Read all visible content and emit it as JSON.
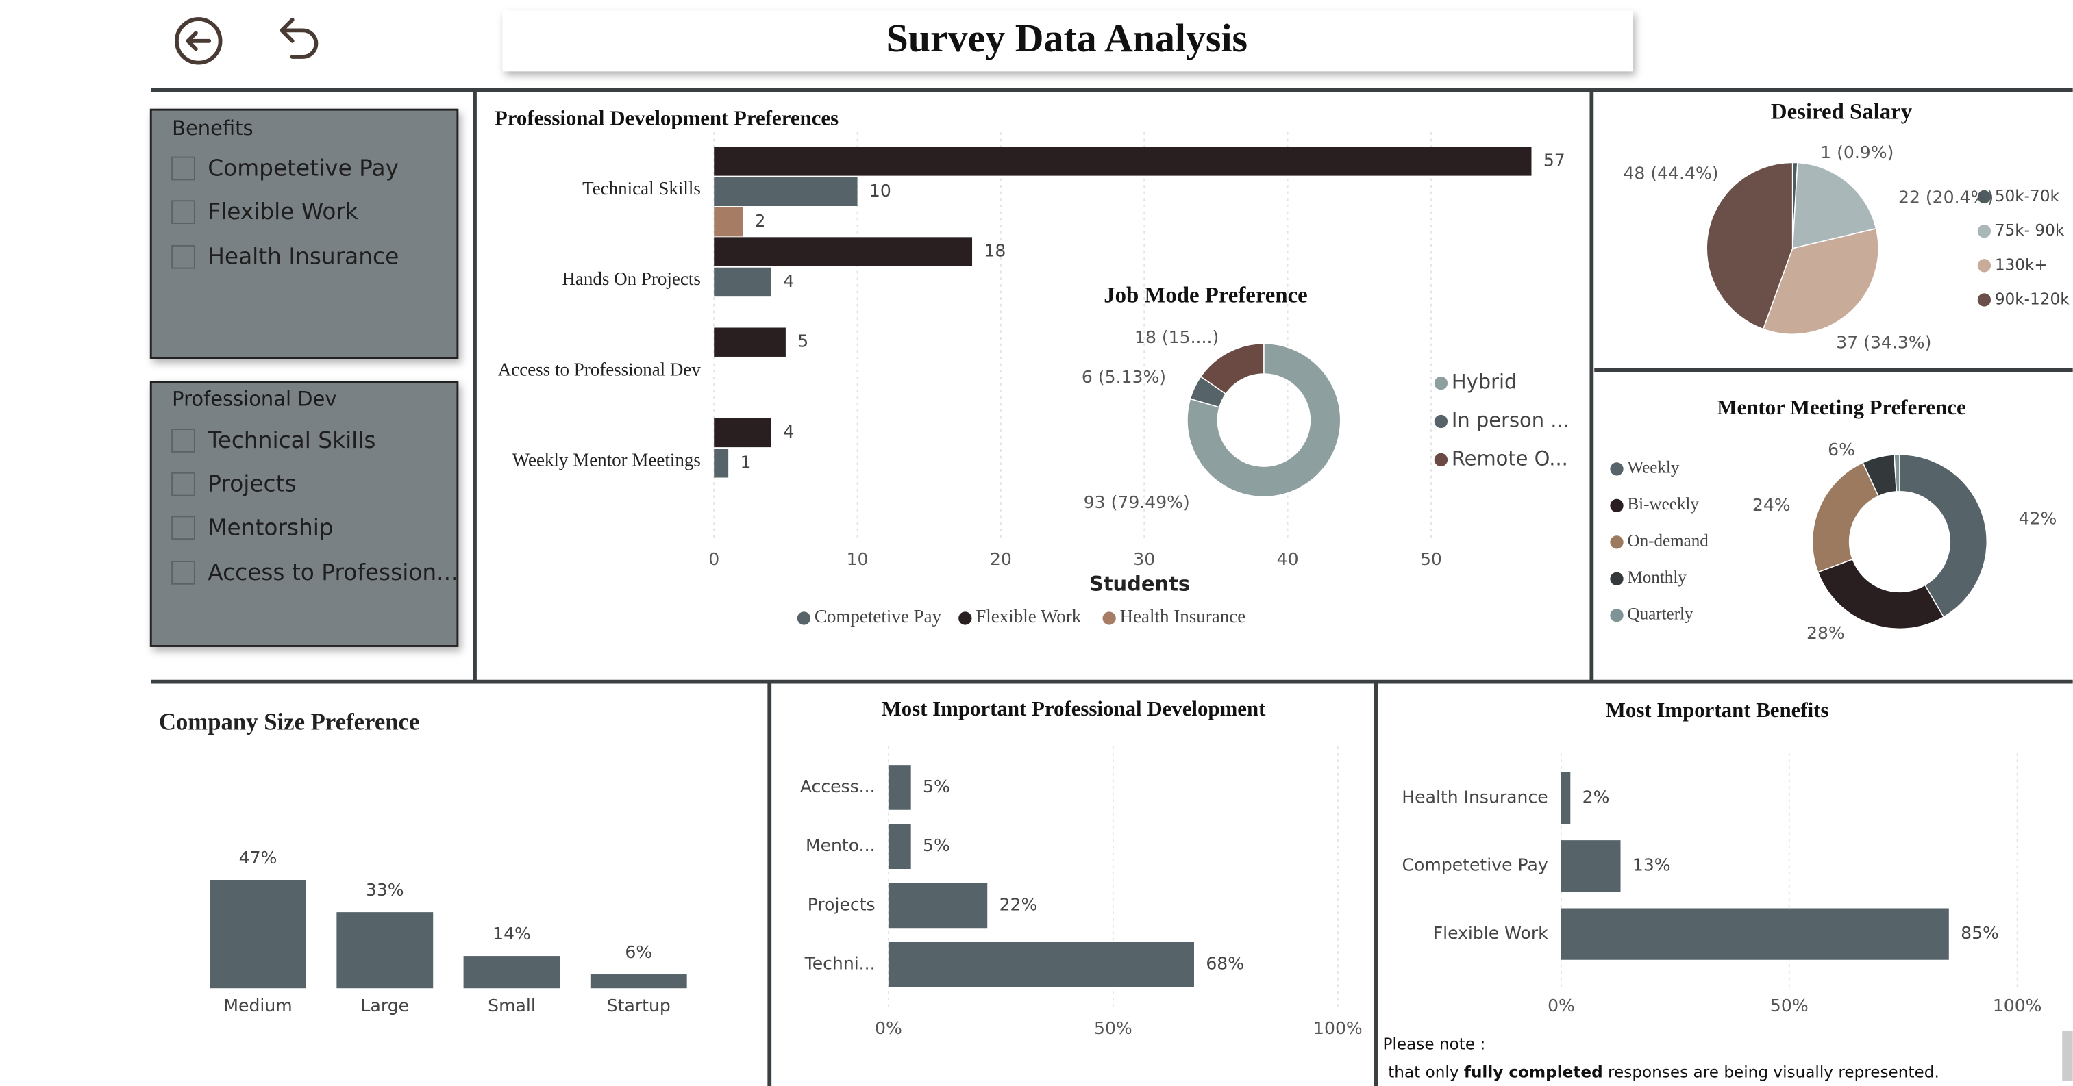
{
  "header": {
    "title": "Survey Data Analysis"
  },
  "slicers": [
    {
      "title": "Benefits",
      "items": [
        "Competetive Pay",
        "Flexible Work",
        "Health Insurance"
      ]
    },
    {
      "title": "Professional Dev",
      "items": [
        "Technical Skills",
        "Projects",
        "Mentorship",
        "Access to Profession..."
      ]
    }
  ],
  "note": {
    "line1": "Please note :",
    "start": "that only ",
    "bold": "fully completed",
    "end": " responses are being visually represented."
  },
  "chart_data": [
    {
      "type": "hbar-grouped",
      "title": "Professional Development Preferences",
      "categories": [
        "Technical Skills",
        "Hands On Projects",
        "Access to Professional Dev",
        "Weekly Mentor Meetings"
      ],
      "series": [
        {
          "name": "Competetive Pay",
          "color": "#56646a",
          "values": [
            10,
            4,
            null,
            1
          ]
        },
        {
          "name": "Flexible Work",
          "color": "#2a1f20",
          "values": [
            57,
            18,
            5,
            4
          ]
        },
        {
          "name": "Health Insurance",
          "color": "#a67c64",
          "values": [
            2,
            null,
            null,
            null
          ]
        }
      ],
      "xlabel": "Students",
      "xlim": [
        0,
        60
      ],
      "xticks": [
        0,
        10,
        20,
        30,
        40,
        50
      ],
      "grid": true
    },
    {
      "type": "donut",
      "title": "Job Mode Preference",
      "categories": [
        "Hybrid",
        "In person ...",
        "Remote O..."
      ],
      "values": [
        93,
        6,
        18
      ],
      "value_labels": [
        "93 (79.49%)",
        "6 (5.13%)",
        "18 (15....)"
      ],
      "colors": [
        "#8e9fa0",
        "#56646a",
        "#6b4a43"
      ]
    },
    {
      "type": "pie",
      "title": "Desired Salary",
      "categories": [
        "50k-70k",
        "75k- 90k",
        "130k+",
        "90k-120k"
      ],
      "values": [
        1,
        22,
        37,
        48
      ],
      "value_labels": [
        "1 (0.9%)",
        "22 (20.4%)",
        "37 (34.3%)",
        "48 (44.4%)"
      ],
      "colors": [
        "#4e5d62",
        "#a9b7b9",
        "#c8ab99",
        "#6b4f49"
      ]
    },
    {
      "type": "donut",
      "title": "Mentor Meeting Preference",
      "categories": [
        "Weekly",
        "Bi-weekly",
        "On-demand",
        "Monthly",
        "Quarterly"
      ],
      "values": [
        42,
        28,
        24,
        6,
        1
      ],
      "value_labels": [
        "42%",
        "28%",
        "24%",
        "6%",
        null
      ],
      "colors": [
        "#56646a",
        "#2a1f20",
        "#9c7a5f",
        "#33393a",
        "#7f9496"
      ]
    },
    {
      "type": "bar",
      "title": "Company Size Preference",
      "categories": [
        "Medium",
        "Large",
        "Small",
        "Startup"
      ],
      "values": [
        47,
        33,
        14,
        6
      ],
      "value_labels": [
        "47%",
        "33%",
        "14%",
        "6%"
      ],
      "color": "#56646a"
    },
    {
      "type": "hbar",
      "title": "Most Important Professional Development",
      "categories": [
        "Access...",
        "Mento...",
        "Projects",
        "Techni..."
      ],
      "values": [
        5,
        5,
        22,
        68
      ],
      "value_labels": [
        "5%",
        "5%",
        "22%",
        "68%"
      ],
      "color": "#56646a",
      "xlim": [
        0,
        100
      ],
      "xticks": [
        {
          "value": 0,
          "label": "0%"
        },
        {
          "value": 50,
          "label": "50%"
        },
        {
          "value": 100,
          "label": "100%"
        }
      ],
      "grid": true
    },
    {
      "type": "hbar",
      "title": "Most Important Benefits",
      "categories": [
        "Health Insurance",
        "Competetive Pay",
        "Flexible Work"
      ],
      "values": [
        2,
        13,
        85
      ],
      "value_labels": [
        "2%",
        "13%",
        "85%"
      ],
      "color": "#56646a",
      "xlim": [
        0,
        100
      ],
      "xticks": [
        {
          "value": 0,
          "label": "0%"
        },
        {
          "value": 50,
          "label": "50%"
        },
        {
          "value": 100,
          "label": "100%"
        }
      ],
      "grid": true
    }
  ]
}
